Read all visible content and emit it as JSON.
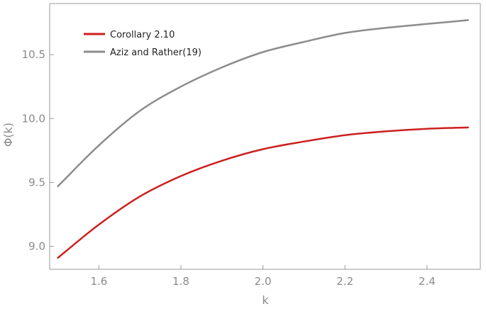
{
  "chart_data": {
    "type": "line",
    "title": "",
    "xlabel": "k",
    "ylabel": "Φ(k)",
    "xlim": [
      1.48,
      2.53
    ],
    "ylim": [
      8.82,
      10.9
    ],
    "x_ticks": [
      "1.6",
      "1.8",
      "2.0",
      "2.2",
      "2.4"
    ],
    "y_ticks": [
      "9.0",
      "9.5",
      "10.0",
      "10.5"
    ],
    "grid": false,
    "legend_position": "top-left",
    "series": [
      {
        "name": "Corollary 2.10",
        "color": "#cc1f1f",
        "x": [
          1.5,
          1.6,
          1.7,
          1.8,
          1.9,
          2.0,
          2.1,
          2.2,
          2.3,
          2.4,
          2.5
        ],
        "y": [
          8.91,
          9.17,
          9.39,
          9.55,
          9.67,
          9.76,
          9.82,
          9.87,
          9.9,
          9.92,
          9.93
        ]
      },
      {
        "name": "Aziz and Rather(19)",
        "color": "#8c8c8c",
        "x": [
          1.5,
          1.6,
          1.7,
          1.8,
          1.9,
          2.0,
          2.1,
          2.2,
          2.3,
          2.4,
          2.5
        ],
        "y": [
          9.47,
          9.79,
          10.06,
          10.25,
          10.4,
          10.52,
          10.6,
          10.67,
          10.71,
          10.74,
          10.77
        ]
      }
    ]
  }
}
